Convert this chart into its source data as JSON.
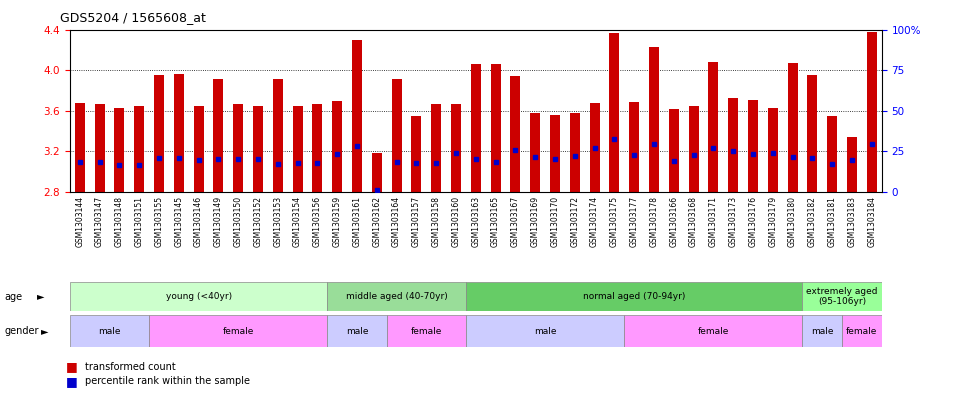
{
  "title": "GDS5204 / 1565608_at",
  "samples": [
    "GSM1303144",
    "GSM1303147",
    "GSM1303148",
    "GSM1303151",
    "GSM1303155",
    "GSM1303145",
    "GSM1303146",
    "GSM1303149",
    "GSM1303150",
    "GSM1303152",
    "GSM1303153",
    "GSM1303154",
    "GSM1303156",
    "GSM1303159",
    "GSM1303161",
    "GSM1303162",
    "GSM1303164",
    "GSM1303157",
    "GSM1303158",
    "GSM1303160",
    "GSM1303163",
    "GSM1303165",
    "GSM1303167",
    "GSM1303169",
    "GSM1303170",
    "GSM1303172",
    "GSM1303174",
    "GSM1303175",
    "GSM1303177",
    "GSM1303178",
    "GSM1303166",
    "GSM1303168",
    "GSM1303171",
    "GSM1303173",
    "GSM1303176",
    "GSM1303179",
    "GSM1303180",
    "GSM1303182",
    "GSM1303181",
    "GSM1303183",
    "GSM1303184"
  ],
  "bar_values": [
    3.68,
    3.67,
    3.63,
    3.65,
    3.96,
    3.97,
    3.65,
    3.92,
    3.67,
    3.65,
    3.92,
    3.65,
    3.67,
    3.7,
    4.3,
    3.19,
    3.92,
    3.55,
    3.67,
    3.67,
    4.06,
    4.06,
    3.95,
    3.58,
    3.56,
    3.58,
    3.68,
    4.37,
    3.69,
    4.23,
    3.62,
    3.65,
    4.08,
    3.73,
    3.71,
    3.63,
    4.07,
    3.96,
    3.55,
    3.34,
    4.38
  ],
  "percentile_values": [
    3.1,
    3.1,
    3.07,
    3.07,
    3.14,
    3.14,
    3.12,
    3.13,
    3.13,
    3.13,
    3.08,
    3.09,
    3.09,
    3.18,
    3.25,
    2.82,
    3.1,
    3.09,
    3.09,
    3.19,
    3.13,
    3.1,
    3.21,
    3.15,
    3.13,
    3.16,
    3.23,
    3.32,
    3.17,
    3.27,
    3.11,
    3.17,
    3.23,
    3.2,
    3.18,
    3.19,
    3.15,
    3.14,
    3.08,
    3.12,
    3.27
  ],
  "ymin": 2.8,
  "ymax": 4.4,
  "yticks": [
    2.8,
    3.2,
    3.6,
    4.0,
    4.4
  ],
  "right_yticks": [
    0,
    25,
    50,
    75,
    100
  ],
  "bar_color": "#CC0000",
  "blue_color": "#0000CC",
  "age_groups": [
    {
      "label": "young (<40yr)",
      "start": 0,
      "end": 13,
      "color": "#CCFFCC"
    },
    {
      "label": "middle aged (40-70yr)",
      "start": 13,
      "end": 20,
      "color": "#99DD99"
    },
    {
      "label": "normal aged (70-94yr)",
      "start": 20,
      "end": 37,
      "color": "#66CC66"
    },
    {
      "label": "extremely aged\n(95-106yr)",
      "start": 37,
      "end": 41,
      "color": "#99FF99"
    }
  ],
  "gender_groups": [
    {
      "label": "male",
      "start": 0,
      "end": 4,
      "color": "#CCCCFF"
    },
    {
      "label": "female",
      "start": 4,
      "end": 13,
      "color": "#FF99FF"
    },
    {
      "label": "male",
      "start": 13,
      "end": 16,
      "color": "#CCCCFF"
    },
    {
      "label": "female",
      "start": 16,
      "end": 20,
      "color": "#FF99FF"
    },
    {
      "label": "male",
      "start": 20,
      "end": 28,
      "color": "#CCCCFF"
    },
    {
      "label": "female",
      "start": 28,
      "end": 37,
      "color": "#FF99FF"
    },
    {
      "label": "male",
      "start": 37,
      "end": 39,
      "color": "#CCCCFF"
    },
    {
      "label": "female",
      "start": 39,
      "end": 41,
      "color": "#FF99FF"
    }
  ],
  "legend_items": [
    {
      "label": "transformed count",
      "color": "#CC0000"
    },
    {
      "label": "percentile rank within the sample",
      "color": "#0000CC"
    }
  ],
  "xtick_bg": "#E8E8E8",
  "bar_width": 0.5
}
